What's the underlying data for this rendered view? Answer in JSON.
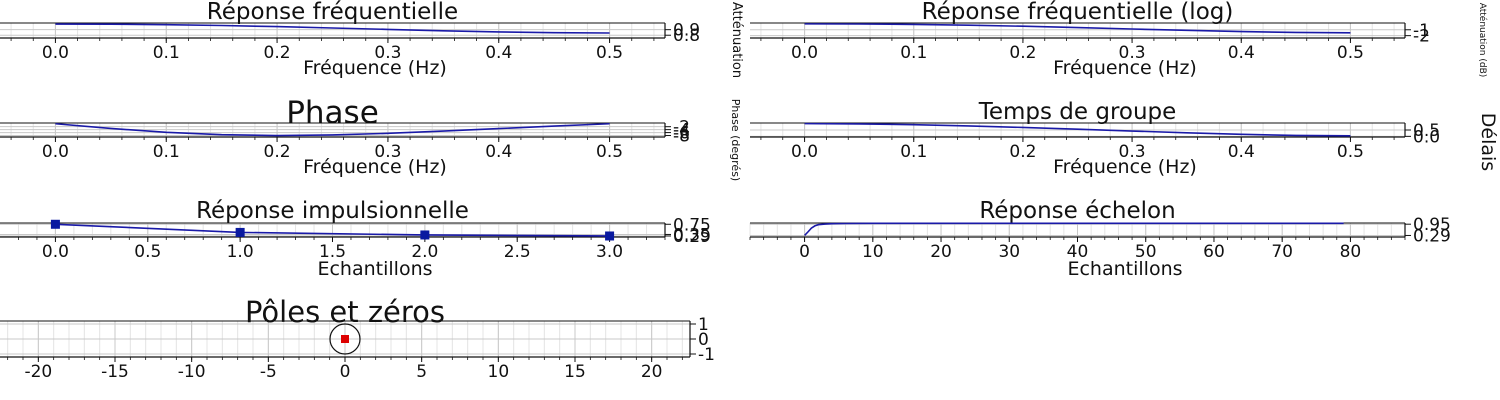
{
  "colors": {
    "line": "#1a1aa8",
    "marker": "#0a1aa0",
    "pole": "#dd0000",
    "grid": "#c8c8c8",
    "frame": "#111111"
  },
  "chart_data": [
    {
      "id": "freq",
      "type": "line",
      "title": "Réponse fréquentielle",
      "xlabel": "Fréquence (Hz)",
      "ylabel": "Atténuation",
      "xticks": [
        0.0,
        0.1,
        0.2,
        0.3,
        0.4,
        0.5
      ],
      "xtick_labels": [
        "0.0",
        "0.1",
        "0.2",
        "0.3",
        "0.4",
        "0.5"
      ],
      "yticks": [
        0.8,
        0.9
      ],
      "ytick_labels": [
        "0.8",
        "0.9"
      ],
      "xlim": [
        -0.05,
        0.55
      ],
      "ylim": [
        0.75,
        1.02
      ],
      "series": [
        {
          "x": [
            0.0,
            0.05,
            0.1,
            0.15,
            0.2,
            0.25,
            0.3,
            0.35,
            0.4,
            0.45,
            0.5
          ],
          "y": [
            1.0,
            0.998,
            0.99,
            0.975,
            0.955,
            0.93,
            0.905,
            0.88,
            0.86,
            0.845,
            0.84
          ]
        }
      ]
    },
    {
      "id": "freqlog",
      "type": "line",
      "title": "Réponse fréquentielle (log)",
      "xlabel": "Fréquence (Hz)",
      "ylabel": "Atténuation (dB)",
      "xticks": [
        0.0,
        0.1,
        0.2,
        0.3,
        0.4,
        0.5
      ],
      "xtick_labels": [
        "0.0",
        "0.1",
        "0.2",
        "0.3",
        "0.4",
        "0.5"
      ],
      "yticks": [
        -2,
        -1
      ],
      "ytick_labels": [
        "-2",
        "-1"
      ],
      "xlim": [
        -0.05,
        0.55
      ],
      "ylim": [
        -2.4,
        0.15
      ],
      "series": [
        {
          "x": [
            0.0,
            0.05,
            0.1,
            0.15,
            0.2,
            0.25,
            0.3,
            0.35,
            0.4,
            0.45,
            0.5
          ],
          "y": [
            0.0,
            -0.02,
            -0.09,
            -0.22,
            -0.4,
            -0.63,
            -0.87,
            -1.1,
            -1.31,
            -1.46,
            -1.51
          ]
        }
      ]
    },
    {
      "id": "phase",
      "type": "line",
      "title": "Phase",
      "xlabel": "Fréquence (Hz)",
      "ylabel": "Phase (degrés)",
      "xticks": [
        0.0,
        0.1,
        0.2,
        0.3,
        0.4,
        0.5
      ],
      "xtick_labels": [
        "0.0",
        "0.1",
        "0.2",
        "0.3",
        "0.4",
        "0.5"
      ],
      "yticks": [
        -8,
        -6,
        -4,
        -2
      ],
      "ytick_labels": [
        "-8",
        "-6",
        "-4",
        "-2"
      ],
      "xlim": [
        -0.05,
        0.55
      ],
      "ylim": [
        -9,
        0.5
      ],
      "series": [
        {
          "x": [
            0.0,
            0.05,
            0.1,
            0.15,
            0.2,
            0.25,
            0.3,
            0.35,
            0.4,
            0.45,
            0.5
          ],
          "y": [
            0.0,
            -3.2,
            -5.8,
            -7.4,
            -8.0,
            -7.6,
            -6.5,
            -5.0,
            -3.3,
            -1.6,
            0.0
          ]
        }
      ]
    },
    {
      "id": "group",
      "type": "line",
      "title": "Temps de groupe",
      "xlabel": "Fréquence (Hz)",
      "ylabel": "Délais",
      "xticks": [
        0.0,
        0.1,
        0.2,
        0.3,
        0.4,
        0.5
      ],
      "xtick_labels": [
        "0.0",
        "0.1",
        "0.2",
        "0.3",
        "0.4",
        "0.5"
      ],
      "yticks": [
        0.0,
        0.5
      ],
      "ytick_labels": [
        "0.0",
        "0.5"
      ],
      "xlim": [
        -0.05,
        0.55
      ],
      "ylim": [
        -0.05,
        1.05
      ],
      "series": [
        {
          "x": [
            0.0,
            0.05,
            0.1,
            0.15,
            0.2,
            0.25,
            0.3,
            0.35,
            0.4,
            0.45,
            0.5
          ],
          "y": [
            1.0,
            0.98,
            0.92,
            0.82,
            0.7,
            0.56,
            0.42,
            0.28,
            0.16,
            0.07,
            0.04
          ]
        }
      ]
    },
    {
      "id": "impulse",
      "type": "line",
      "title": "Réponse impulsionnelle",
      "xlabel": "Echantillons",
      "ylabel": "",
      "xticks": [
        0.0,
        0.5,
        1.0,
        1.5,
        2.0,
        2.5,
        3.0
      ],
      "xtick_labels": [
        "0.0",
        "0.5",
        "1.0",
        "1.5",
        "2.0",
        "2.5",
        "3.0"
      ],
      "yticks": [
        0.29,
        0.35,
        0.75
      ],
      "ytick_labels": [
        "0.29",
        "0.35",
        "0.75"
      ],
      "xlim": [
        -0.3,
        3.3
      ],
      "ylim": [
        0.25,
        0.8
      ],
      "markers": true,
      "series": [
        {
          "x": [
            0,
            1,
            2,
            3
          ],
          "y": [
            0.75,
            0.43,
            0.33,
            0.29
          ]
        }
      ]
    },
    {
      "id": "step",
      "type": "line",
      "title": "Réponse échelon",
      "xlabel": "Echantillons",
      "ylabel": "",
      "xticks": [
        0,
        10,
        20,
        30,
        40,
        50,
        60,
        70,
        80
      ],
      "xtick_labels": [
        "0",
        "10",
        "20",
        "30",
        "40",
        "50",
        "60",
        "70",
        "80"
      ],
      "yticks": [
        0.29,
        0.95
      ],
      "ytick_labels": [
        "0.29",
        "0.95"
      ],
      "xlim": [
        -8,
        88
      ],
      "ylim": [
        0.2,
        1.02
      ],
      "series": [
        {
          "x": [
            0,
            0.5,
            1,
            1.5,
            2,
            3,
            4,
            6,
            10,
            20,
            40,
            60,
            79
          ],
          "y": [
            0.29,
            0.5,
            0.72,
            0.85,
            0.92,
            0.96,
            0.98,
            0.99,
            1.0,
            1.0,
            1.0,
            1.0,
            1.0
          ]
        }
      ]
    },
    {
      "id": "poles",
      "type": "scatter",
      "title": "Pôles et zéros",
      "xlabel": "",
      "ylabel": "",
      "xticks": [
        -20,
        -15,
        -10,
        -5,
        0,
        5,
        10,
        15,
        20
      ],
      "xtick_labels": [
        "-20",
        "-15",
        "-10",
        "-5",
        "0",
        "5",
        "10",
        "15",
        "20"
      ],
      "yticks": [
        -1,
        0,
        1
      ],
      "ytick_labels": [
        "-1",
        "0",
        "1"
      ],
      "xlim": [
        -22.5,
        22.5
      ],
      "ylim": [
        -1.2,
        1.2
      ],
      "unit_circle": true,
      "poles": [
        {
          "x": 0.0,
          "y": 0.0
        }
      ]
    }
  ]
}
